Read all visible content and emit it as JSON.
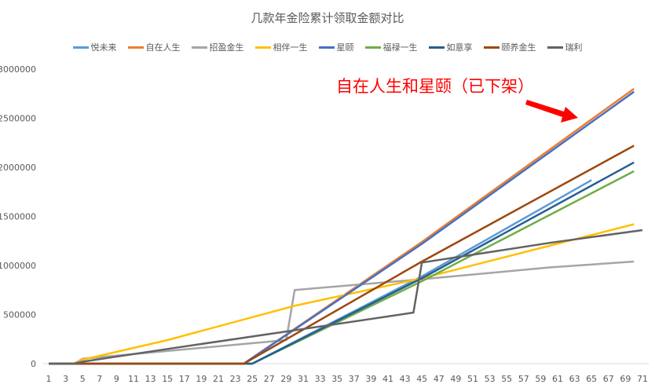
{
  "chart_data": {
    "type": "line",
    "title": "几款年金险累计领取金额对比",
    "xlabel": "",
    "ylabel": "",
    "x_range": [
      1,
      71
    ],
    "x_tick_labels": [
      "1",
      "3",
      "5",
      "7",
      "9",
      "11",
      "13",
      "15",
      "17",
      "19",
      "21",
      "23",
      "25",
      "27",
      "29",
      "31",
      "33",
      "35",
      "37",
      "39",
      "41",
      "43",
      "45",
      "47",
      "49",
      "51",
      "53",
      "55",
      "57",
      "59",
      "61",
      "63",
      "65",
      "67",
      "69",
      "71"
    ],
    "ylim": [
      0,
      3000000
    ],
    "y_tick_labels": [
      "0",
      "500000",
      "1000000",
      "1500000",
      "2000000",
      "2500000",
      "3000000"
    ],
    "y_ticks": [
      0,
      500000,
      1000000,
      1500000,
      2000000,
      2500000,
      3000000
    ],
    "grid": false,
    "legend_position": "top",
    "annotation": {
      "text": "自在人生和星颐（已下架）",
      "color": "#ff0000"
    },
    "series": [
      {
        "name": "悦未来",
        "color": "#5b9bd5",
        "points": [
          [
            1,
            0
          ],
          [
            25,
            0
          ],
          [
            45,
            890000
          ],
          [
            65,
            1870000
          ]
        ]
      },
      {
        "name": "自在人生",
        "color": "#ed7d31",
        "points": [
          [
            1,
            0
          ],
          [
            24,
            0
          ],
          [
            45,
            1240000
          ],
          [
            70,
            2800000
          ]
        ]
      },
      {
        "name": "招盈金生",
        "color": "#a5a5a5",
        "points": [
          [
            1,
            0
          ],
          [
            4,
            0
          ],
          [
            5,
            50000
          ],
          [
            29,
            240000
          ],
          [
            30,
            750000
          ],
          [
            45,
            860000
          ],
          [
            60,
            980000
          ],
          [
            70,
            1040000
          ]
        ]
      },
      {
        "name": "相伴一生",
        "color": "#ffc000",
        "points": [
          [
            1,
            0
          ],
          [
            4,
            0
          ],
          [
            5,
            40000
          ],
          [
            15,
            240000
          ],
          [
            30,
            590000
          ],
          [
            45,
            870000
          ],
          [
            60,
            1200000
          ],
          [
            70,
            1420000
          ]
        ]
      },
      {
        "name": "星颐",
        "color": "#4472c4",
        "points": [
          [
            1,
            0
          ],
          [
            24,
            0
          ],
          [
            45,
            1220000
          ],
          [
            70,
            2770000
          ]
        ]
      },
      {
        "name": "福禄一生",
        "color": "#70ad47",
        "points": [
          [
            1,
            0
          ],
          [
            25,
            0
          ],
          [
            45,
            840000
          ],
          [
            70,
            1960000
          ]
        ]
      },
      {
        "name": "如意享",
        "color": "#255e91",
        "points": [
          [
            1,
            0
          ],
          [
            25,
            0
          ],
          [
            45,
            870000
          ],
          [
            70,
            2050000
          ]
        ]
      },
      {
        "name": "颐养金生",
        "color": "#9e480e",
        "points": [
          [
            1,
            0
          ],
          [
            24,
            0
          ],
          [
            45,
            1040000
          ],
          [
            70,
            2220000
          ]
        ]
      },
      {
        "name": "瑞利",
        "color": "#636363",
        "points": [
          [
            1,
            0
          ],
          [
            4,
            0
          ],
          [
            5,
            20000
          ],
          [
            15,
            150000
          ],
          [
            30,
            340000
          ],
          [
            44,
            520000
          ],
          [
            45,
            1030000
          ],
          [
            60,
            1230000
          ],
          [
            71,
            1360000
          ]
        ]
      }
    ]
  }
}
